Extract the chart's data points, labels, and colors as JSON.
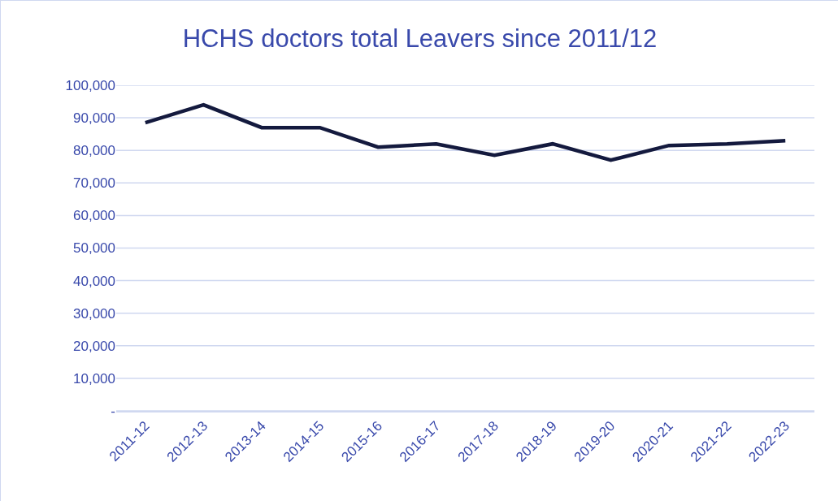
{
  "chart_data": {
    "type": "line",
    "title": "HCHS doctors total Leavers since 2011/12",
    "categories": [
      "2011-12",
      "2012-13",
      "2013-14",
      "2014-15",
      "2015-16",
      "2016-17",
      "2017-18",
      "2018-19",
      "2019-20",
      "2020-21",
      "2021-22",
      "2022-23"
    ],
    "series": [
      {
        "color": "#141a3e",
        "values": [
          88500,
          94000,
          87000,
          87000,
          81000,
          82000,
          78500,
          82000,
          77000,
          81500,
          82000,
          83000
        ]
      }
    ],
    "ylim": [
      0,
      100000
    ],
    "yticks": [
      {
        "value": 0,
        "label": "-"
      },
      {
        "value": 10000,
        "label": "10,000"
      },
      {
        "value": 20000,
        "label": "20,000"
      },
      {
        "value": 30000,
        "label": "30,000"
      },
      {
        "value": 40000,
        "label": "40,000"
      },
      {
        "value": 50000,
        "label": "50,000"
      },
      {
        "value": 60000,
        "label": "60,000"
      },
      {
        "value": 70000,
        "label": "70,000"
      },
      {
        "value": 80000,
        "label": "80,000"
      },
      {
        "value": 90000,
        "label": "90,000"
      },
      {
        "value": 100000,
        "label": "100,000"
      }
    ],
    "grid": "y",
    "marker": "none",
    "line_style": "solid"
  }
}
